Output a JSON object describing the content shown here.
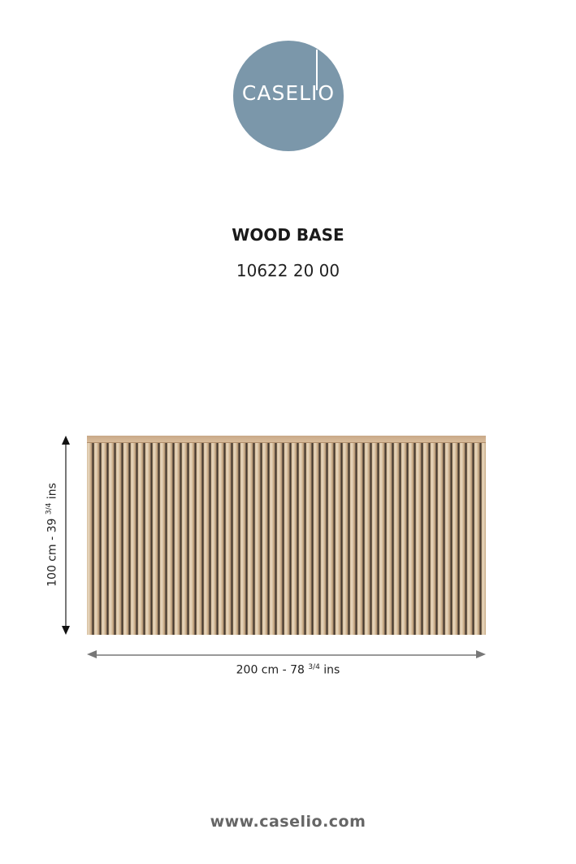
{
  "brand": {
    "logo_text": "CASELIO",
    "logo_color": "#7b97aa"
  },
  "product": {
    "name": "WOOD BASE",
    "code": "10622 20 00"
  },
  "dimensions": {
    "height_main": "100 cm - 39",
    "height_fraction": "3/4",
    "height_unit": "ins",
    "width_main": "200 cm - 78",
    "width_fraction": "3/4",
    "width_unit": "ins"
  },
  "footer": {
    "url": "www.caselio.com"
  }
}
